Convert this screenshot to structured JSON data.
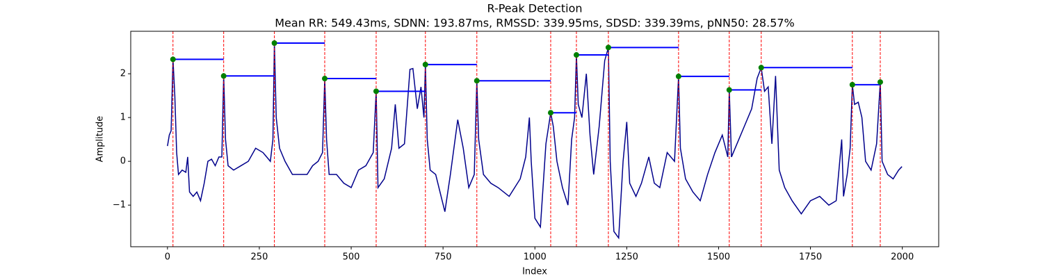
{
  "chart_data": {
    "type": "line",
    "title": "R-Peak Detection",
    "subtitle": "Mean RR: 549.43ms, SDNN: 193.87ms, RMSSD: 339.95ms, SDSD: 339.39ms, pNN50: 28.57%",
    "x_label": "Index",
    "y_label": "Amplitude",
    "color": "#00008b",
    "x": [
      0,
      5,
      10,
      15,
      20,
      25,
      30,
      40,
      50,
      55,
      60,
      70,
      80,
      90,
      100,
      110,
      120,
      130,
      140,
      148,
      153,
      158,
      165,
      180,
      200,
      220,
      240,
      260,
      280,
      287,
      291,
      296,
      305,
      320,
      340,
      360,
      380,
      395,
      410,
      422,
      428,
      433,
      440,
      460,
      480,
      500,
      520,
      540,
      560,
      568,
      573,
      590,
      610,
      620,
      630,
      645,
      660,
      668,
      680,
      690,
      698,
      702,
      707,
      715,
      730,
      755,
      770,
      790,
      805,
      820,
      835,
      842,
      847,
      860,
      880,
      900,
      930,
      960,
      975,
      985,
      990,
      1000,
      1015,
      1030,
      1043,
      1050,
      1060,
      1075,
      1090,
      1100,
      1108,
      1113,
      1118,
      1128,
      1140,
      1150,
      1160,
      1175,
      1190,
      1200,
      1205,
      1215,
      1228,
      1240,
      1250,
      1258,
      1275,
      1290,
      1310,
      1325,
      1340,
      1360,
      1380,
      1391,
      1396,
      1410,
      1430,
      1450,
      1470,
      1490,
      1510,
      1525,
      1529,
      1535,
      1550,
      1570,
      1590,
      1605,
      1616,
      1625,
      1635,
      1645,
      1655,
      1665,
      1680,
      1700,
      1725,
      1750,
      1775,
      1800,
      1820,
      1835,
      1840,
      1850,
      1858,
      1864,
      1870,
      1880,
      1890,
      1900,
      1915,
      1930,
      1940,
      1945,
      1960,
      1975,
      1990,
      1999
    ],
    "values": [
      0.35,
      0.6,
      0.7,
      2.33,
      1.5,
      0.2,
      -0.3,
      -0.2,
      -0.25,
      0.1,
      -0.7,
      -0.8,
      -0.7,
      -0.9,
      -0.5,
      0.0,
      0.05,
      -0.1,
      0.1,
      0.1,
      1.95,
      0.5,
      -0.1,
      -0.2,
      -0.1,
      0.0,
      0.3,
      0.2,
      0.0,
      0.5,
      2.7,
      1.0,
      0.3,
      0.0,
      -0.3,
      -0.3,
      -0.3,
      -0.1,
      0.0,
      0.2,
      1.89,
      0.5,
      -0.3,
      -0.3,
      -0.5,
      -0.6,
      -0.2,
      -0.1,
      0.2,
      1.6,
      -0.6,
      -0.4,
      0.3,
      1.3,
      0.3,
      0.4,
      2.1,
      2.12,
      1.2,
      1.7,
      1.0,
      2.21,
      0.5,
      -0.2,
      -0.3,
      -1.15,
      -0.3,
      0.95,
      0.3,
      -0.6,
      -0.3,
      1.84,
      0.5,
      -0.3,
      -0.5,
      -0.6,
      -0.8,
      -0.4,
      0.1,
      1.0,
      0.0,
      -1.3,
      -1.5,
      0.4,
      1.11,
      0.8,
      0.0,
      -0.6,
      -1.0,
      0.5,
      1.0,
      2.43,
      1.3,
      1.0,
      2.0,
      0.6,
      -0.3,
      0.8,
      2.3,
      2.6,
      0.0,
      -1.6,
      -1.75,
      0.0,
      0.9,
      -0.5,
      -0.8,
      -0.5,
      0.1,
      -0.5,
      -0.6,
      0.2,
      0.0,
      1.94,
      0.3,
      -0.4,
      -0.7,
      -0.9,
      -0.3,
      0.2,
      0.6,
      0.1,
      1.63,
      0.1,
      0.4,
      0.8,
      1.2,
      1.9,
      2.14,
      1.6,
      1.7,
      0.4,
      1.95,
      -0.2,
      -0.6,
      -0.9,
      -1.2,
      -0.9,
      -0.8,
      -1.0,
      -0.9,
      0.5,
      -0.8,
      -0.3,
      0.3,
      1.75,
      1.3,
      1.35,
      1.0,
      0.0,
      -0.2,
      0.4,
      1.81,
      0.0,
      -0.3,
      -0.4,
      -0.2,
      -0.12
    ],
    "peaks": {
      "x": [
        15,
        153,
        291,
        428,
        568,
        702,
        842,
        1043,
        1113,
        1200,
        1391,
        1529,
        1616,
        1864,
        1940
      ],
      "values": [
        2.33,
        1.95,
        2.7,
        1.89,
        1.6,
        2.21,
        1.84,
        1.11,
        2.43,
        2.6,
        1.94,
        1.63,
        2.14,
        1.75,
        1.81
      ],
      "color": "green",
      "peak_line_color": "red",
      "rr_line_color": "blue"
    },
    "xlim": [
      -100,
      2099
    ],
    "ylim": [
      -1.95,
      2.97
    ],
    "xticks": [
      0,
      250,
      500,
      750,
      1000,
      1250,
      1500,
      1750,
      2000
    ],
    "yticks": [
      {
        "value": -1,
        "label": "−1"
      },
      0,
      1,
      2
    ]
  }
}
